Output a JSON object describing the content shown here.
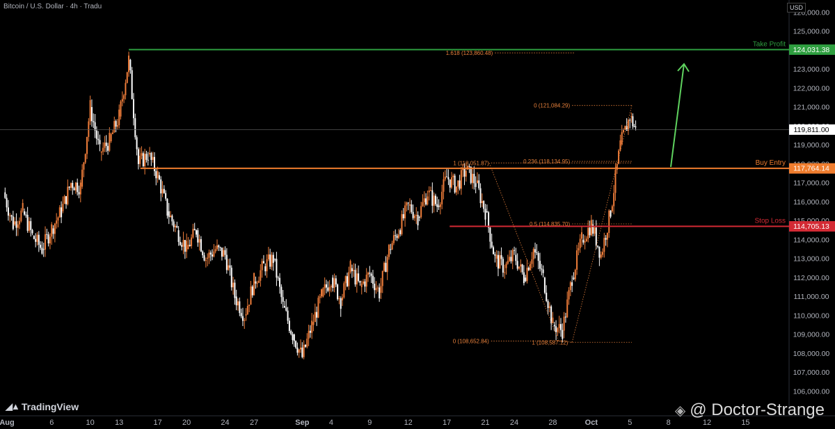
{
  "header": {
    "symbol_title": "Bitcoin / U.S. Dollar · 4h · Tradu"
  },
  "currency_label": "USD",
  "brand": {
    "logo_icon": "tradingview-logo-icon",
    "name": "TradingView"
  },
  "watermark": {
    "icon": "binance-logo-icon",
    "text": "@ Doctor-Strange"
  },
  "colors": {
    "up": "#ef7d3a",
    "down": "#ffffff",
    "take_profit": "#2e9e3f",
    "buy_entry": "#f07d2e",
    "stop_loss": "#d32a34",
    "fib": "#e8813b",
    "arrow": "#5fd35f"
  },
  "chart_data": {
    "type": "candlestick",
    "title": "Bitcoin / U.S. Dollar · 4h · Tradu",
    "ylim": [
      105000,
      126500
    ],
    "y_ticks": [
      106000,
      107000,
      108000,
      109000,
      110000,
      111000,
      112000,
      113000,
      114000,
      115000,
      116000,
      117000,
      118000,
      119000,
      120000,
      121000,
      122000,
      123000,
      124000,
      125000,
      126000
    ],
    "x_ticks": [
      {
        "day": 0,
        "label": "Aug"
      },
      {
        "day": 5,
        "label": "6"
      },
      {
        "day": 9,
        "label": "10"
      },
      {
        "day": 12,
        "label": "13"
      },
      {
        "day": 16,
        "label": "17"
      },
      {
        "day": 19,
        "label": "20"
      },
      {
        "day": 23,
        "label": "24"
      },
      {
        "day": 26,
        "label": "27"
      },
      {
        "day": 31,
        "label": "Sep"
      },
      {
        "day": 34,
        "label": "4"
      },
      {
        "day": 38,
        "label": "9"
      },
      {
        "day": 42,
        "label": "12"
      },
      {
        "day": 46,
        "label": "17"
      },
      {
        "day": 50,
        "label": "21"
      },
      {
        "day": 53,
        "label": "24"
      },
      {
        "day": 57,
        "label": "28"
      },
      {
        "day": 61,
        "label": "Oct"
      },
      {
        "day": 65,
        "label": "5"
      },
      {
        "day": 69,
        "label": "8"
      },
      {
        "day": 73,
        "label": "12"
      },
      {
        "day": 77,
        "label": "15"
      }
    ],
    "series": [
      {
        "day": 0,
        "price": 116500
      },
      {
        "day": 1,
        "price": 114800
      },
      {
        "day": 2,
        "price": 115500
      },
      {
        "day": 3,
        "price": 114200
      },
      {
        "day": 4,
        "price": 113500
      },
      {
        "day": 5,
        "price": 114600
      },
      {
        "day": 6,
        "price": 115500
      },
      {
        "day": 7,
        "price": 117000
      },
      {
        "day": 8,
        "price": 116800
      },
      {
        "day": 9,
        "price": 121000
      },
      {
        "day": 10,
        "price": 118600
      },
      {
        "day": 11,
        "price": 119200
      },
      {
        "day": 12,
        "price": 120500
      },
      {
        "day": 13,
        "price": 123500
      },
      {
        "day": 14,
        "price": 118000
      },
      {
        "day": 15,
        "price": 118500
      },
      {
        "day": 16,
        "price": 117400
      },
      {
        "day": 17,
        "price": 115500
      },
      {
        "day": 18,
        "price": 114500
      },
      {
        "day": 19,
        "price": 113500
      },
      {
        "day": 20,
        "price": 114500
      },
      {
        "day": 21,
        "price": 113000
      },
      {
        "day": 22,
        "price": 113500
      },
      {
        "day": 23,
        "price": 113200
      },
      {
        "day": 24,
        "price": 111000
      },
      {
        "day": 25,
        "price": 110000
      },
      {
        "day": 26,
        "price": 111800
      },
      {
        "day": 27,
        "price": 112600
      },
      {
        "day": 28,
        "price": 113000
      },
      {
        "day": 29,
        "price": 110500
      },
      {
        "day": 30,
        "price": 109000
      },
      {
        "day": 31,
        "price": 107800
      },
      {
        "day": 32,
        "price": 109500
      },
      {
        "day": 33,
        "price": 111000
      },
      {
        "day": 34,
        "price": 112000
      },
      {
        "day": 35,
        "price": 110800
      },
      {
        "day": 36,
        "price": 112500
      },
      {
        "day": 37,
        "price": 111500
      },
      {
        "day": 38,
        "price": 112200
      },
      {
        "day": 39,
        "price": 111200
      },
      {
        "day": 40,
        "price": 113500
      },
      {
        "day": 41,
        "price": 114500
      },
      {
        "day": 42,
        "price": 115800
      },
      {
        "day": 43,
        "price": 115200
      },
      {
        "day": 44,
        "price": 116500
      },
      {
        "day": 45,
        "price": 115800
      },
      {
        "day": 46,
        "price": 117300
      },
      {
        "day": 47,
        "price": 116800
      },
      {
        "day": 48,
        "price": 117700
      },
      {
        "day": 49,
        "price": 117000
      },
      {
        "day": 50,
        "price": 115500
      },
      {
        "day": 51,
        "price": 113000
      },
      {
        "day": 52,
        "price": 112500
      },
      {
        "day": 53,
        "price": 113200
      },
      {
        "day": 54,
        "price": 112000
      },
      {
        "day": 55,
        "price": 113500
      },
      {
        "day": 56,
        "price": 112000
      },
      {
        "day": 57,
        "price": 109500
      },
      {
        "day": 58,
        "price": 109200
      },
      {
        "day": 59,
        "price": 112000
      },
      {
        "day": 60,
        "price": 114000
      },
      {
        "day": 61,
        "price": 114800
      },
      {
        "day": 62,
        "price": 113200
      },
      {
        "day": 63,
        "price": 115500
      },
      {
        "day": 64,
        "price": 119000
      },
      {
        "day": 65,
        "price": 120500
      },
      {
        "day": 65.6,
        "price": 119811
      }
    ],
    "current_price": 119811.0,
    "levels": [
      {
        "name": "Take Profit",
        "value": 124031.38,
        "label": "124,031.38",
        "text": "Take Profit"
      },
      {
        "name": "Buy Entry",
        "value": 117764.14,
        "label": "117,764.14",
        "text": "Buy Entry"
      },
      {
        "name": "Stop Loss",
        "value": 114705.13,
        "label": "114,705.13",
        "text": "Stop Loss"
      }
    ],
    "current_price_label": "119,811.00",
    "fib_labels": [
      {
        "text": "1.618 (123,860.48)",
        "value": 123860.48
      },
      {
        "text": "0 (121,084.29)",
        "value": 121084.29
      },
      {
        "text": "1 (118,051.87)",
        "value": 118051.87
      },
      {
        "text": "0.236 (118,134.95)",
        "value": 118134.95
      },
      {
        "text": "0.5 (114,835.70)",
        "value": 114835.7
      },
      {
        "text": "0 (108,652.84)",
        "value": 108652.84
      },
      {
        "text": "1 (108,587.12)",
        "value": 108587.12
      }
    ]
  }
}
